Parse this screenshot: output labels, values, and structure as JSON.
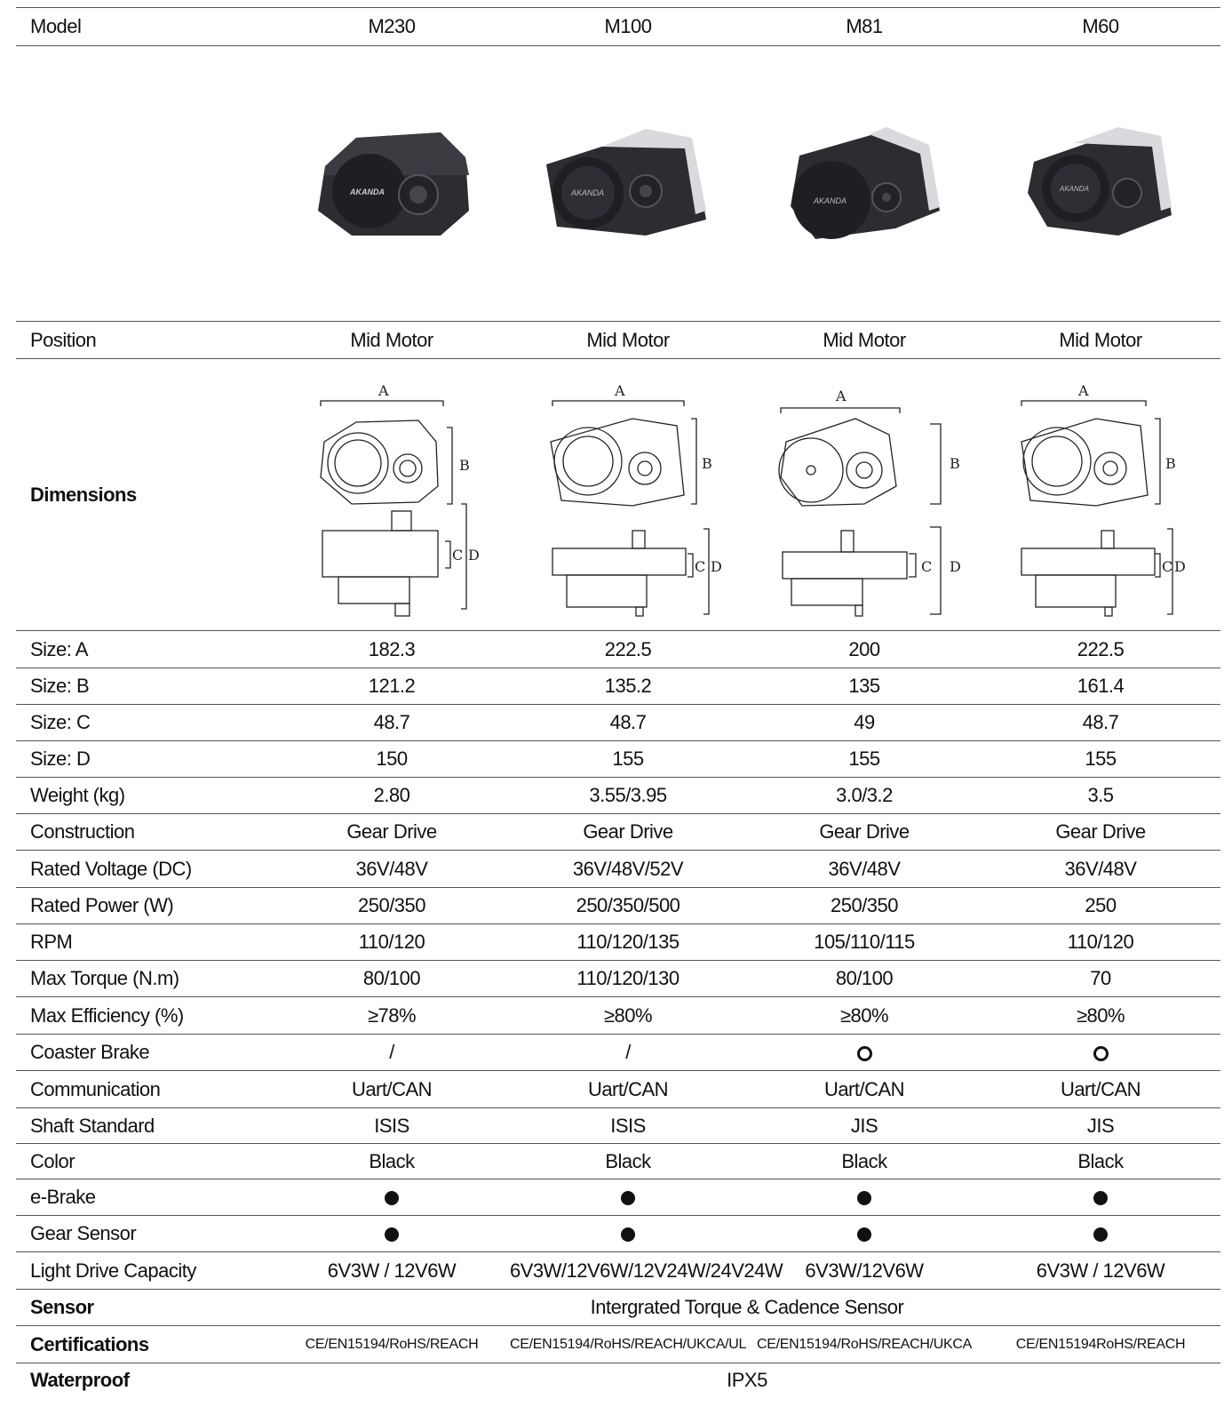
{
  "header": {
    "label": "Model",
    "models": [
      "M230",
      "M100",
      "M81",
      "M60"
    ]
  },
  "rows_a": [
    {
      "label": "Position",
      "values": [
        "Mid Motor",
        "Mid Motor",
        "Mid Motor",
        "Mid Motor"
      ]
    }
  ],
  "dimensions_label": "Dimensions",
  "dimension_letters": {
    "a": "A",
    "b": "B",
    "c": "C",
    "d": "D"
  },
  "product_logo_text": "AKANDA",
  "rows_b": [
    {
      "label": "Size: A",
      "values": [
        "182.3",
        "222.5",
        "200",
        "222.5"
      ]
    },
    {
      "label": "Size: B",
      "values": [
        "121.2",
        "135.2",
        "135",
        "161.4"
      ]
    },
    {
      "label": "Size: C",
      "values": [
        "48.7",
        "48.7",
        "49",
        "48.7"
      ]
    },
    {
      "label": "Size: D",
      "values": [
        "150",
        "155",
        "155",
        "155"
      ]
    },
    {
      "label": "Weight (kg)",
      "values": [
        "2.80",
        "3.55/3.95",
        "3.0/3.2",
        "3.5"
      ]
    },
    {
      "label": "Construction",
      "values": [
        "Gear Drive",
        "Gear Drive",
        "Gear Drive",
        "Gear Drive"
      ]
    },
    {
      "label": "Rated Voltage (DC)",
      "values": [
        "36V/48V",
        "36V/48V/52V",
        "36V/48V",
        "36V/48V"
      ]
    },
    {
      "label": "Rated Power (W)",
      "values": [
        "250/350",
        "250/350/500",
        "250/350",
        "250"
      ]
    },
    {
      "label": "RPM",
      "values": [
        "110/120",
        "110/120/135",
        "105/110/115",
        "110/120"
      ]
    },
    {
      "label": "Max Torque (N.m)",
      "values": [
        "80/100",
        "110/120/130",
        "80/100",
        "70"
      ]
    },
    {
      "label": "Max Efficiency (%)",
      "values": [
        "≥78%",
        "≥80%",
        "≥80%",
        "≥80%"
      ]
    }
  ],
  "coaster_brake": {
    "label": "Coaster Brake",
    "values": [
      "/",
      "/",
      "optional",
      "optional"
    ]
  },
  "rows_c": [
    {
      "label": "Communication",
      "values": [
        "Uart/CAN",
        "Uart/CAN",
        "Uart/CAN",
        "Uart/CAN"
      ]
    },
    {
      "label": "Shaft Standard",
      "values": [
        "ISIS",
        "ISIS",
        "JIS",
        "JIS"
      ]
    },
    {
      "label": "Color",
      "values": [
        "Black",
        "Black",
        "Black",
        "Black"
      ]
    }
  ],
  "ebrake": {
    "label": "e-Brake",
    "values": [
      "standard",
      "standard",
      "standard",
      "standard"
    ]
  },
  "gear_sensor": {
    "label": "Gear Sensor",
    "values": [
      "standard",
      "standard",
      "standard",
      "standard"
    ]
  },
  "light_drive": {
    "label": "Light Drive Capacity",
    "values": [
      "6V3W / 12V6W",
      "6V3W/12V6W/12V24W/24V24W",
      "6V3W/12V6W",
      "6V3W / 12V6W"
    ]
  },
  "sensor": {
    "label": "Sensor",
    "value": "Intergrated Torque & Cadence Sensor"
  },
  "certifications": {
    "label": "Certifications",
    "values": [
      "CE/EN15194/RoHS/REACH",
      "CE/EN15194/RoHS/REACH/UKCA/UL",
      "CE/EN15194/RoHS/REACH/UKCA",
      "CE/EN15194RoHS/REACH"
    ]
  },
  "waterproof": {
    "label": "Waterproof",
    "value": "IPX5"
  },
  "colors": {
    "rule": "#555555",
    "motor_body": "#2b2d31",
    "motor_cover": "#d9dadd",
    "marker": "#111111"
  }
}
